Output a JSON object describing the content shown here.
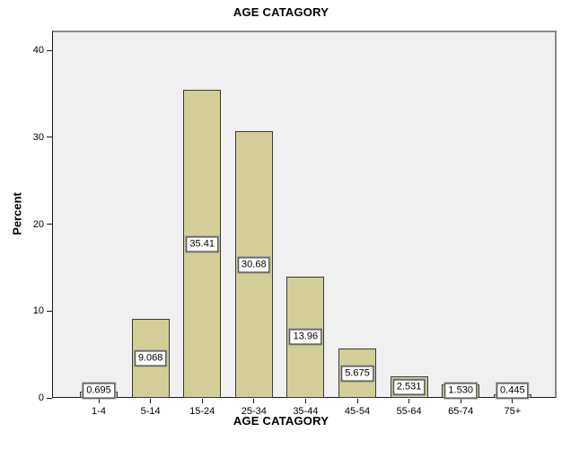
{
  "chart_data": {
    "type": "bar",
    "title": "AGE CATAGORY",
    "xlabel": "AGE CATAGORY",
    "ylabel": "Percent",
    "categories": [
      "1-4",
      "5-14",
      "15-24",
      "25-34",
      "35-44",
      "45-54",
      "55-64",
      "65-74",
      "75+"
    ],
    "values": [
      0.695,
      9.068,
      35.41,
      30.68,
      13.96,
      5.675,
      2.531,
      1.53,
      0.445
    ],
    "value_labels": [
      "0.695",
      "9.068",
      "35.41",
      "30.68",
      "13.96",
      "5.675",
      "2.531",
      "1.530",
      "0.445"
    ],
    "y_ticks": [
      0,
      10,
      20,
      30,
      40
    ],
    "ylim": [
      0,
      42.3
    ],
    "grid": false,
    "legend": "none",
    "colors": {
      "bar_fill": "#D3CE97",
      "bar_border": "#3A3A3A",
      "plot_bg": "#F0F0F0",
      "frame": "#8A8A8A",
      "axis": "#1A1A1A",
      "label_box_bg": "#FFFFFF",
      "label_box_border": "#3A3A3A",
      "text": "#000000"
    }
  }
}
